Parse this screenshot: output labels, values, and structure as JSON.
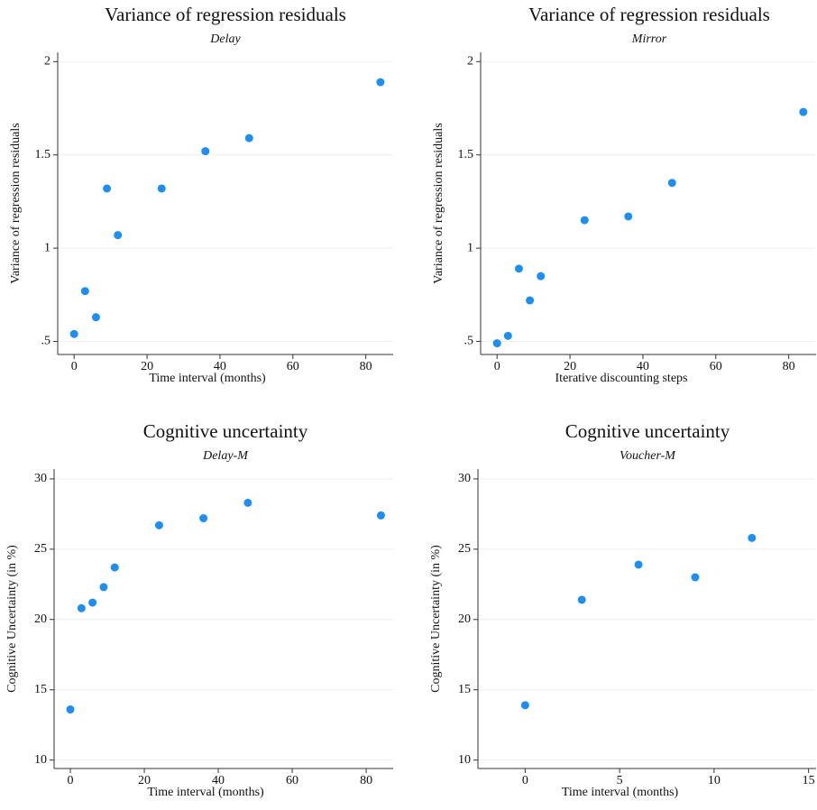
{
  "chart_data": [
    {
      "type": "scatter",
      "title": "Variance of regression residuals",
      "subtitle": "Delay",
      "xlabel": "Time interval (months)",
      "ylabel": "Variance of regression residuals",
      "x": [
        0,
        3,
        6,
        9,
        12,
        24,
        36,
        48,
        84
      ],
      "values": [
        0.54,
        0.77,
        0.63,
        1.32,
        1.07,
        1.32,
        1.52,
        1.59,
        1.89
      ],
      "color": "#1f8ef1",
      "xlim": [
        -4.5,
        87.5
      ],
      "ylim": [
        0.43,
        2.05
      ],
      "xticks": [
        0,
        20,
        40,
        60,
        80
      ],
      "yticks": [
        {
          "value": 0.5,
          "label": ".5"
        },
        1,
        1.5,
        2
      ],
      "grid": true
    },
    {
      "type": "scatter",
      "title": "Variance of regression residuals",
      "subtitle": "Mirror",
      "xlabel": "Iterative discounting steps",
      "ylabel": "Variance of regression residuals",
      "x": [
        0,
        3,
        6,
        9,
        12,
        24,
        36,
        48,
        84
      ],
      "values": [
        0.49,
        0.53,
        0.89,
        0.72,
        0.85,
        1.15,
        1.17,
        1.35,
        1.73
      ],
      "color": "#1f8ef1",
      "xlim": [
        -4.5,
        87.5
      ],
      "ylim": [
        0.43,
        2.05
      ],
      "xticks": [
        0,
        20,
        40,
        60,
        80
      ],
      "yticks": [
        {
          "value": 0.5,
          "label": ".5"
        },
        1,
        1.5,
        2
      ],
      "grid": true
    },
    {
      "type": "scatter",
      "title": "Cognitive uncertainty",
      "subtitle": "Delay-M",
      "xlabel": "Time interval (months)",
      "ylabel": "Cognitive Uncertainty (in %)",
      "x": [
        0,
        3,
        6,
        9,
        12,
        24,
        36,
        48,
        84
      ],
      "values": [
        13.6,
        20.8,
        21.2,
        22.3,
        23.7,
        26.7,
        27.2,
        28.3,
        27.4
      ],
      "color": "#1f8ef1",
      "xlim": [
        -4.4,
        87.3
      ],
      "ylim": [
        9.4,
        30.7
      ],
      "xticks": [
        0,
        20,
        40,
        60,
        80
      ],
      "yticks": [
        10,
        15,
        20,
        25,
        30
      ],
      "grid": true
    },
    {
      "type": "scatter",
      "title": "Cognitive uncertainty",
      "subtitle": "Voucher-M",
      "xlabel": "Time interval (months)",
      "ylabel": "Cognitive Uncertainty (in %)",
      "x": [
        0,
        3,
        6,
        9,
        12
      ],
      "values": [
        13.9,
        21.4,
        23.9,
        23.0,
        25.8
      ],
      "color": "#1f8ef1",
      "xlim": [
        -2.5,
        15.4
      ],
      "ylim": [
        9.4,
        30.7
      ],
      "xticks": [
        0,
        5,
        10,
        15
      ],
      "yticks": [
        10,
        15,
        20,
        25,
        30
      ],
      "grid": true
    }
  ]
}
